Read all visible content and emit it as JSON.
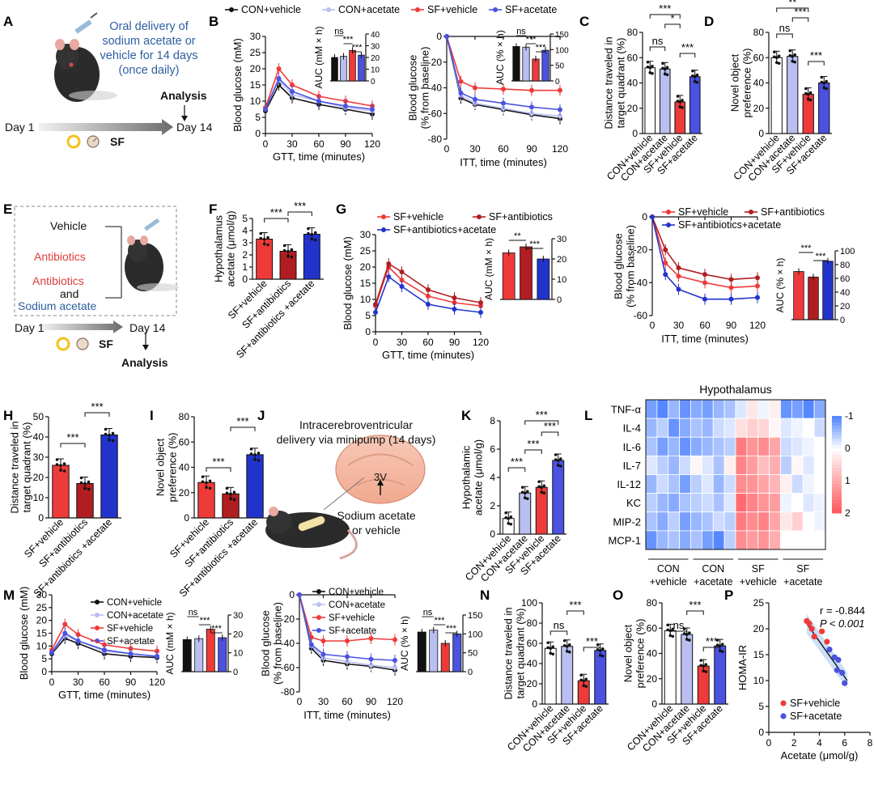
{
  "colors": {
    "con_vehicle": "#111111",
    "con_acetate": "#b9bff0",
    "sf_vehicle": "#ef3a3a",
    "sf_acetate": "#4b52e0",
    "sf_antibiotics": "#b01e22",
    "sf_antibiotics_acetate": "#2233cc"
  },
  "panel_letters": [
    "A",
    "B",
    "C",
    "D",
    "E",
    "F",
    "G",
    "H",
    "I",
    "J",
    "K",
    "L",
    "M",
    "N",
    "O",
    "P"
  ],
  "panelA": {
    "delivery_text": [
      "Oral delivery of",
      "sodium acetate or",
      "vehicle for 14 days",
      "(once daily)"
    ],
    "analysis": "Analysis",
    "day1": "Day 1",
    "day14": "Day 14",
    "sf": "SF"
  },
  "panelE": {
    "vehicle": "Vehicle",
    "antibiotics": "Antibiotics",
    "antibiotics2": "Antibiotics",
    "and": "and",
    "sodium_acetate": "Sodium acetate",
    "day1": "Day 1",
    "day14": "Day 14",
    "sf": "SF",
    "analysis": "Analysis"
  },
  "panelJ": {
    "title": [
      "Intracerebroventricular",
      "delivery via minipump (14 days)"
    ],
    "ventricle": "3V",
    "drug": [
      "Sodium acetate",
      "or vehicle"
    ]
  },
  "chart_data": [
    {
      "panel": "B",
      "type": "line",
      "legend": [
        "CON+vehicle",
        "CON+acetate",
        "SF+vehicle",
        "SF+acetate"
      ],
      "x": [
        0,
        15,
        30,
        60,
        90,
        120
      ],
      "xlabel": "GTT, time (minutes)",
      "ylabel": "Blood glucose (mM)",
      "xticks": [
        0,
        30,
        60,
        90,
        120
      ],
      "yticks": [
        0,
        5,
        10,
        15,
        20,
        25,
        30
      ],
      "ylim": [
        0,
        30
      ],
      "series": [
        {
          "name": "CON+vehicle",
          "values": [
            7,
            15,
            11,
            9,
            7.5,
            6
          ]
        },
        {
          "name": "CON+acetate",
          "values": [
            7.5,
            16.5,
            12,
            10,
            8,
            7
          ]
        },
        {
          "name": "SF+vehicle",
          "values": [
            8,
            20,
            15,
            11.5,
            10,
            8.5
          ]
        },
        {
          "name": "SF+acetate",
          "values": [
            7.5,
            17,
            13,
            10,
            8.5,
            7.5
          ]
        }
      ],
      "inset": {
        "ylabel": "AUC (mM × h)",
        "yticks": [
          0,
          10,
          20,
          30,
          40
        ],
        "ylim": [
          0,
          40
        ],
        "values": [
          20,
          21,
          26,
          22
        ],
        "sig": [
          "ns",
          "***",
          "***"
        ]
      }
    },
    {
      "panel": "B2",
      "type": "line",
      "x": [
        0,
        15,
        30,
        60,
        90,
        120
      ],
      "xlabel": "ITT, time (minutes)",
      "ylabel": "Blood glucose (% from baseline)",
      "xticks": [
        0,
        30,
        60,
        90,
        120
      ],
      "yticks": [
        0,
        -20,
        -40,
        -60,
        -80
      ],
      "ylim": [
        -80,
        0
      ],
      "series": [
        {
          "name": "CON+vehicle",
          "values": [
            0,
            -48,
            -53,
            -57,
            -61,
            -64
          ]
        },
        {
          "name": "CON+acetate",
          "values": [
            0,
            -46,
            -52,
            -56,
            -60,
            -62
          ]
        },
        {
          "name": "SF+vehicle",
          "values": [
            0,
            -35,
            -40,
            -41,
            -42,
            -42
          ]
        },
        {
          "name": "SF+acetate",
          "values": [
            0,
            -44,
            -49,
            -52,
            -55,
            -57
          ]
        }
      ],
      "inset": {
        "ylabel": "AUC (% × h)",
        "yticks": [
          0,
          50,
          100,
          150
        ],
        "ylim": [
          0,
          150
        ],
        "values": [
          110,
          108,
          70,
          98
        ],
        "sig": [
          "ns",
          "***",
          "***"
        ]
      }
    },
    {
      "panel": "C",
      "type": "bar",
      "categories": [
        "CON+vehicle",
        "CON+acetate",
        "SF+vehicle",
        "SF+acetate"
      ],
      "values": [
        52,
        51,
        25,
        45
      ],
      "ylabel": "Distance traveled in target quadrant (%)",
      "yticks": [
        0,
        20,
        40,
        60,
        80
      ],
      "ylim": [
        0,
        80
      ],
      "sig": [
        "ns",
        "***",
        "*",
        "***"
      ]
    },
    {
      "panel": "D",
      "type": "bar",
      "categories": [
        "CON+vehicle",
        "CON+acetate",
        "SF+vehicle",
        "SF+acetate"
      ],
      "values": [
        60,
        61,
        31,
        40
      ],
      "ylabel": "Novel object preference (%)",
      "yticks": [
        0,
        20,
        40,
        60,
        80
      ],
      "ylim": [
        0,
        80
      ],
      "sig": [
        "ns",
        "***",
        "***",
        "**"
      ]
    },
    {
      "panel": "F",
      "type": "bar",
      "categories": [
        "SF+vehicle",
        "SF+antibiotics",
        "SF+antibiotics +acetate"
      ],
      "values": [
        3.3,
        2.3,
        3.7
      ],
      "ylabel": "Hypothalamus acetate (μmol/g)",
      "yticks": [
        0,
        1,
        2,
        3,
        4,
        5
      ],
      "ylim": [
        0,
        5
      ],
      "sig": [
        "***",
        "***"
      ]
    },
    {
      "panel": "G",
      "type": "line",
      "legend": [
        "SF+vehicle",
        "SF+antibiotics",
        "SF+antibiotics+acetate"
      ],
      "x": [
        0,
        15,
        30,
        60,
        90,
        120
      ],
      "xlabel": "GTT, time (minutes)",
      "ylabel": "Blood glucose (mM)",
      "xticks": [
        0,
        30,
        60,
        90,
        120
      ],
      "yticks": [
        0,
        5,
        10,
        15,
        20,
        25,
        30
      ],
      "ylim": [
        0,
        30
      ],
      "series": [
        {
          "name": "SF+vehicle",
          "values": [
            8,
            20,
            16,
            11,
            9,
            8
          ]
        },
        {
          "name": "SF+antibiotics",
          "values": [
            8.5,
            21,
            18.5,
            13,
            10.5,
            9
          ]
        },
        {
          "name": "SF+antibiotics+acetate",
          "values": [
            6,
            17,
            14,
            8.5,
            7,
            6
          ]
        }
      ],
      "inset": {
        "ylabel": "AUC (mM × h)",
        "yticks": [
          0,
          10,
          20,
          30
        ],
        "ylim": [
          0,
          30
        ],
        "values": [
          23,
          26,
          20
        ],
        "sig": [
          "**",
          "***"
        ]
      }
    },
    {
      "panel": "G2",
      "type": "line",
      "legend": [
        "SF+vehicle",
        "SF+antibiotics",
        "SF+antibiotics+acetate"
      ],
      "x": [
        0,
        15,
        30,
        60,
        90,
        120
      ],
      "xlabel": "ITT, time (minutes)",
      "ylabel": "Blood glucose (% from baseline)",
      "xticks": [
        0,
        30,
        60,
        90,
        120
      ],
      "yticks": [
        0,
        -20,
        -40,
        -60
      ],
      "ylim": [
        -60,
        0
      ],
      "series": [
        {
          "name": "SF+vehicle",
          "values": [
            0,
            -28,
            -36,
            -40,
            -43,
            -42
          ]
        },
        {
          "name": "SF+antibiotics",
          "values": [
            0,
            -20,
            -31,
            -35,
            -38,
            -37
          ]
        },
        {
          "name": "SF+antibiotics+acetate",
          "values": [
            0,
            -35,
            -44,
            -50,
            -50,
            -49
          ]
        }
      ],
      "inset": {
        "ylabel": "AUC (% × h)",
        "yticks": [
          0,
          20,
          40,
          60,
          80,
          100
        ],
        "ylim": [
          0,
          100
        ],
        "values": [
          70,
          62,
          85
        ],
        "sig": [
          "***",
          "***"
        ]
      }
    },
    {
      "panel": "H",
      "type": "bar",
      "categories": [
        "SF+vehicle",
        "SF+antibiotics",
        "SF+antibiotics +acetate"
      ],
      "values": [
        26,
        17,
        41
      ],
      "ylabel": "Distance traveled in target quadrant (%)",
      "yticks": [
        0,
        10,
        20,
        30,
        40,
        50
      ],
      "ylim": [
        0,
        50
      ],
      "sig": [
        "***",
        "***"
      ]
    },
    {
      "panel": "I",
      "type": "bar",
      "categories": [
        "SF+vehicle",
        "SF+antibiotics",
        "SF+antibiotics +acetate"
      ],
      "values": [
        28,
        19,
        50
      ],
      "ylabel": "Novel object preference (%)",
      "yticks": [
        0,
        20,
        40,
        60,
        80
      ],
      "ylim": [
        0,
        80
      ],
      "sig": [
        "***",
        "***"
      ]
    },
    {
      "panel": "K",
      "type": "bar",
      "categories": [
        "CON+vehicle",
        "CON+acetate",
        "SF+vehicle",
        "SF+acetate"
      ],
      "values": [
        1.1,
        2.9,
        3.3,
        5.2
      ],
      "ylabel": "Hypothalamic acetate (μmol/g)",
      "yticks": [
        0,
        2,
        4,
        6,
        8
      ],
      "ylim": [
        0,
        8
      ],
      "sig": [
        "***",
        "***",
        "***",
        "***"
      ]
    },
    {
      "panel": "L",
      "type": "heatmap",
      "title": "Hypothalamus",
      "rows": [
        "TNF-α",
        "IL-4",
        "IL-6",
        "IL-7",
        "IL-12",
        "KC",
        "MIP-2",
        "MCP-1"
      ],
      "groups": [
        "CON +vehicle",
        "CON +acetate",
        "SF +vehicle",
        "SF +acetate"
      ],
      "colorbar_ticks": [
        "-1",
        "0",
        "1",
        "2"
      ],
      "values": [
        [
          -0.8,
          -1,
          -0.6,
          -0.9,
          -0.7,
          -0.8,
          -0.6,
          -0.5,
          -0.2,
          0.3,
          -0.1,
          0.2,
          -0.9,
          -0.8,
          -1,
          -0.7
        ],
        [
          -0.6,
          -0.4,
          -0.9,
          -0.7,
          -0.5,
          -0.6,
          -0.3,
          -0.2,
          0.4,
          0.6,
          0.5,
          0.1,
          -0.2,
          -0.1,
          0,
          -0.3
        ],
        [
          -0.5,
          -0.8,
          -0.6,
          -0.9,
          -0.7,
          -0.6,
          -0.5,
          -0.4,
          1.6,
          1.3,
          1.4,
          1.1,
          -0.3,
          -0.2,
          -0.1,
          0
        ],
        [
          -0.2,
          -0.4,
          -0.6,
          -0.3,
          0.1,
          -0.2,
          -0.5,
          0.2,
          1.5,
          1.2,
          0.8,
          1.0,
          -0.4,
          0.1,
          -0.2,
          0
        ],
        [
          -0.6,
          -0.3,
          -0.5,
          -0.8,
          -0.4,
          -0.2,
          -0.6,
          -0.3,
          1.4,
          1.3,
          1.1,
          0.9,
          0.2,
          -0.3,
          -0.1,
          0
        ],
        [
          -0.4,
          -0.6,
          -0.7,
          -0.5,
          -0.4,
          -0.3,
          -0.5,
          -0.2,
          1.8,
          1.5,
          1.3,
          1.2,
          -0.1,
          0,
          -0.2,
          -0.1
        ],
        [
          -0.5,
          -0.7,
          -0.4,
          -0.8,
          -0.6,
          -0.5,
          -0.3,
          -0.4,
          1.6,
          1.4,
          1.5,
          1.1,
          0.3,
          0.6,
          0,
          -0.1
        ],
        [
          -0.9,
          -0.6,
          -0.5,
          -0.7,
          -0.5,
          -0.8,
          -1,
          -0.4,
          1.4,
          1.2,
          1.3,
          1.0,
          0,
          0,
          0,
          0
        ]
      ]
    },
    {
      "panel": "M",
      "type": "line",
      "legend": [
        "CON+vehicle",
        "CON+acetate",
        "SF+vehicle",
        "SF+acetate"
      ],
      "x": [
        0,
        15,
        30,
        60,
        90,
        120
      ],
      "xlabel": "GTT, time (minutes)",
      "ylabel": "Blood glucose (mM)",
      "xticks": [
        0,
        30,
        60,
        90,
        120
      ],
      "yticks": [
        0,
        5,
        10,
        15,
        20,
        25,
        30
      ],
      "ylim": [
        0,
        30
      ],
      "series": [
        {
          "name": "CON+vehicle",
          "values": [
            7,
            13,
            11,
            7,
            6,
            5.5
          ]
        },
        {
          "name": "CON+acetate",
          "values": [
            7.5,
            14,
            12,
            8,
            7,
            6
          ]
        },
        {
          "name": "SF+vehicle",
          "values": [
            8.5,
            18.5,
            14.5,
            10.5,
            9,
            8
          ]
        },
        {
          "name": "SF+acetate",
          "values": [
            7.5,
            15,
            12,
            8.5,
            7,
            6
          ]
        }
      ],
      "inset": {
        "ylabel": "AUC (mM × h)",
        "yticks": [
          0,
          10,
          20,
          30
        ],
        "ylim": [
          0,
          30
        ],
        "values": [
          17,
          17.5,
          22.5,
          18
        ],
        "sig": [
          "ns",
          "***",
          "***"
        ]
      }
    },
    {
      "panel": "M2",
      "type": "line",
      "legend": [
        "CON+vehicle",
        "CON+acetate",
        "SF+vehicle",
        "SF+acetate"
      ],
      "x": [
        0,
        15,
        30,
        60,
        90,
        120
      ],
      "xlabel": "ITT, time (minutes)",
      "ylabel": "Blood glucose (% from baseline)",
      "xticks": [
        0,
        30,
        60,
        90,
        120
      ],
      "yticks": [
        0,
        -20,
        -40,
        -60,
        -80
      ],
      "ylim": [
        -80,
        0
      ],
      "series": [
        {
          "name": "CON+vehicle",
          "values": [
            0,
            -44,
            -54,
            -57,
            -59,
            -62
          ]
        },
        {
          "name": "CON+acetate",
          "values": [
            0,
            -42,
            -52,
            -55,
            -58,
            -60
          ]
        },
        {
          "name": "SF+vehicle",
          "values": [
            0,
            -35,
            -38,
            -38,
            -36,
            -37
          ]
        },
        {
          "name": "SF+acetate",
          "values": [
            0,
            -41,
            -49,
            -51,
            -53,
            -54
          ]
        }
      ],
      "inset": {
        "ylabel": "AUC (% × h)",
        "yticks": [
          0,
          50,
          100,
          150
        ],
        "ylim": [
          0,
          150
        ],
        "values": [
          105,
          110,
          75,
          100
        ],
        "sig": [
          "ns",
          "***",
          "***"
        ]
      }
    },
    {
      "panel": "N",
      "type": "bar",
      "categories": [
        "CON+vehicle",
        "CON+acetate",
        "SF+vehicle",
        "SF+acetate"
      ],
      "values": [
        55,
        57,
        23,
        53
      ],
      "ylabel": "Distance traveled in target quadrant (%)",
      "yticks": [
        0,
        20,
        40,
        60,
        80,
        100
      ],
      "ylim": [
        0,
        100
      ],
      "sig": [
        "ns",
        "***",
        "***"
      ]
    },
    {
      "panel": "O",
      "type": "bar",
      "categories": [
        "CON+vehicle",
        "CON+acetate",
        "SF+vehicle",
        "SF+acetate"
      ],
      "values": [
        58,
        55,
        30,
        46
      ],
      "ylabel": "Novel object preference (%)",
      "yticks": [
        0,
        20,
        40,
        60,
        80
      ],
      "ylim": [
        0,
        80
      ],
      "sig": [
        "ns",
        "***",
        "***"
      ]
    },
    {
      "panel": "P",
      "type": "scatter",
      "xlabel": "Acetate (μmol/g)",
      "ylabel": "HOMA-IR",
      "xticks": [
        0,
        2,
        4,
        6,
        8
      ],
      "yticks": [
        0,
        5,
        10,
        15,
        20,
        25
      ],
      "xlim": [
        0,
        8
      ],
      "ylim": [
        0,
        25
      ],
      "annotation_r": "r = -0.844",
      "annotation_p": "P < 0.001",
      "legend": [
        "SF+vehicle",
        "SF+acetate"
      ],
      "series": [
        {
          "name": "SF+vehicle",
          "points": [
            [
              3.0,
              21.5
            ],
            [
              3.2,
              21
            ],
            [
              3.4,
              20
            ],
            [
              3.6,
              18.5
            ],
            [
              4.2,
              19.5
            ],
            [
              4.6,
              17.5
            ]
          ]
        },
        {
          "name": "SF+acetate",
          "points": [
            [
              4.8,
              16
            ],
            [
              5.2,
              14.5
            ],
            [
              5.5,
              14
            ],
            [
              5.8,
              11.5
            ],
            [
              6.0,
              9.5
            ],
            [
              5.4,
              12
            ]
          ]
        }
      ]
    }
  ]
}
